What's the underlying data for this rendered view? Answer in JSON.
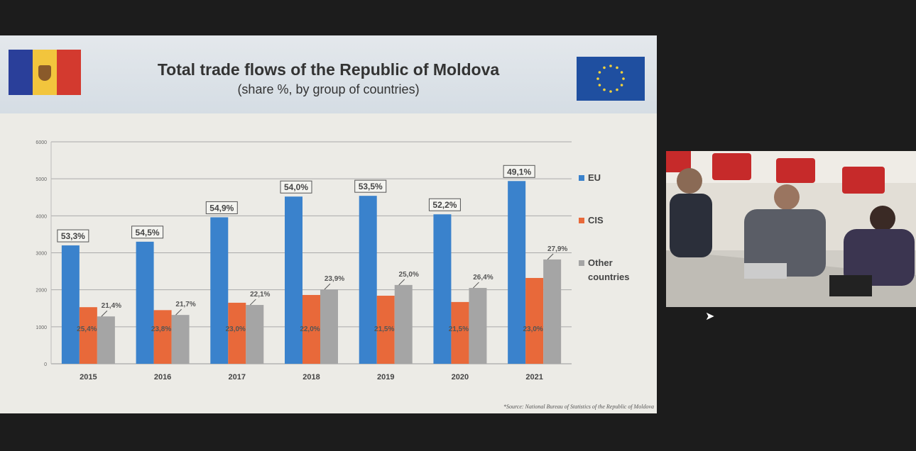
{
  "slide": {
    "title": "Total trade flows of the Republic of Moldova",
    "subtitle": "(share %, by group of countries)",
    "source": "*Source: National Bureau of Statistics of the Republic of Moldova"
  },
  "colors": {
    "eu": "#3a82cc",
    "cis": "#e8693a",
    "other": "#a5a5a5"
  },
  "chart_data": {
    "type": "bar",
    "title": "Total trade flows of the Republic of Moldova",
    "subtitle": "(share %, by group of countries)",
    "categories": [
      "2015",
      "2016",
      "2017",
      "2018",
      "2019",
      "2020",
      "2021"
    ],
    "ylim": [
      0,
      6000
    ],
    "yticks": [
      "0",
      "1000",
      "2000",
      "3000",
      "4000",
      "5000",
      "6000"
    ],
    "grid": true,
    "legend_position": "right",
    "series": [
      {
        "name": "EU",
        "values": [
          3200,
          3300,
          3960,
          4520,
          4540,
          4040,
          4940
        ],
        "labels": [
          "53,3%",
          "54,5%",
          "54,9%",
          "54,0%",
          "53,5%",
          "52,2%",
          "49,1%"
        ]
      },
      {
        "name": "CIS",
        "values": [
          1530,
          1450,
          1650,
          1860,
          1840,
          1670,
          2320
        ],
        "labels": [
          "25,4%",
          "23,8%",
          "23,0%",
          "22,0%",
          "21,5%",
          "21,5%",
          "23,0%"
        ]
      },
      {
        "name": "Other countries",
        "values": [
          1280,
          1320,
          1590,
          2010,
          2130,
          2050,
          2820
        ],
        "labels": [
          "21,4%",
          "21,7%",
          "22,1%",
          "23,9%",
          "25,0%",
          "26,4%",
          "27,9%"
        ]
      }
    ]
  }
}
